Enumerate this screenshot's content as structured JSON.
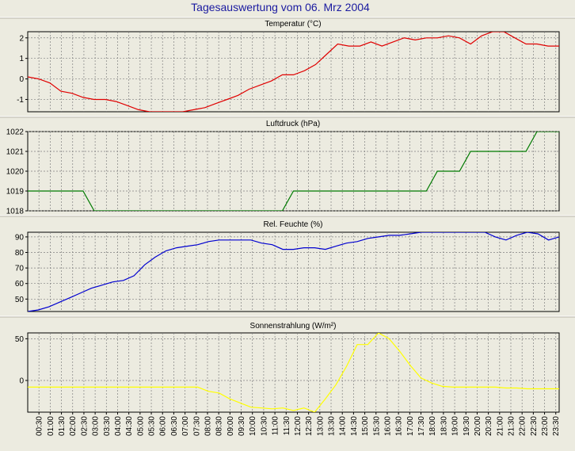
{
  "title": "Tagesauswertung vom 06. Mrz 2004",
  "colors": {
    "background": "#ecebe0",
    "plot_background": "#ecebe0",
    "grid": "#808080",
    "title": "#1a1aa0",
    "temperature": "#e00000",
    "pressure": "#007a00",
    "humidity": "#0000d0",
    "radiation": "#ffff00"
  },
  "x_tick_labels": [
    "00:30",
    "01:00",
    "01:30",
    "02:00",
    "02:30",
    "03:00",
    "03:30",
    "04:00",
    "04:30",
    "05:00",
    "05:30",
    "06:00",
    "06:30",
    "07:00",
    "07:30",
    "08:00",
    "08:30",
    "09:00",
    "09:30",
    "10:00",
    "10:30",
    "11:00",
    "11:30",
    "12:00",
    "12:30",
    "13:00",
    "13:30",
    "14:00",
    "14:30",
    "15:00",
    "15:30",
    "16:00",
    "16:30",
    "17:00",
    "17:30",
    "18:00",
    "18:30",
    "19:00",
    "19:30",
    "20:00",
    "20:30",
    "21:00",
    "21:30",
    "22:00",
    "22:30",
    "23:00",
    "23:30"
  ],
  "chart_data": [
    {
      "type": "line",
      "title": "Temperatur (°C)",
      "ylim": [
        -1.6,
        2.3
      ],
      "yticks": [
        -1,
        0,
        1,
        2
      ],
      "grid": true,
      "series": [
        {
          "color": "#e00000",
          "values": [
            0.1,
            0.0,
            -0.2,
            -0.6,
            -0.7,
            -0.9,
            -1.0,
            -1.0,
            -1.1,
            -1.3,
            -1.5,
            -1.6,
            -1.6,
            -1.6,
            -1.6,
            -1.5,
            -1.4,
            -1.2,
            -1.0,
            -0.8,
            -0.5,
            -0.3,
            -0.1,
            0.2,
            0.2,
            0.4,
            0.7,
            1.2,
            1.7,
            1.6,
            1.6,
            1.8,
            1.6,
            1.8,
            2.0,
            1.9,
            2.0,
            2.0,
            2.1,
            2.0,
            1.7,
            2.1,
            2.3,
            2.3,
            2.0,
            1.7,
            1.7,
            1.6,
            1.6
          ]
        }
      ]
    },
    {
      "type": "line",
      "title": "Luftdruck (hPa)",
      "ylim": [
        1018,
        1022
      ],
      "yticks": [
        1018,
        1019,
        1020,
        1021,
        1022
      ],
      "grid": true,
      "series": [
        {
          "color": "#007a00",
          "values": [
            1019,
            1019,
            1019,
            1019,
            1019,
            1019,
            1018,
            1018,
            1018,
            1018,
            1018,
            1018,
            1018,
            1018,
            1018,
            1018,
            1018,
            1018,
            1018,
            1018,
            1018,
            1018,
            1018,
            1018,
            1019,
            1019,
            1019,
            1019,
            1019,
            1019,
            1019,
            1019,
            1019,
            1019,
            1019,
            1019,
            1019,
            1020,
            1020,
            1020,
            1021,
            1021,
            1021,
            1021,
            1021,
            1021,
            1022,
            1022,
            1022
          ]
        }
      ]
    },
    {
      "type": "line",
      "title": "Rel. Feuchte (%)",
      "ylim": [
        42,
        93
      ],
      "yticks": [
        50,
        60,
        70,
        80,
        90
      ],
      "grid": true,
      "series": [
        {
          "color": "#0000d0",
          "values": [
            42,
            43,
            45,
            48,
            51,
            54,
            57,
            59,
            61,
            62,
            65,
            72,
            77,
            81,
            83,
            84,
            85,
            87,
            88,
            88,
            88,
            88,
            86,
            85,
            82,
            82,
            83,
            83,
            82,
            84,
            86,
            87,
            89,
            90,
            91,
            91,
            92,
            93,
            93,
            93,
            93,
            93,
            93,
            93,
            90,
            88,
            91,
            93,
            92,
            88,
            90
          ]
        }
      ]
    },
    {
      "type": "line",
      "title": "Sonnenstrahlung (W/m²)",
      "ylim": [
        -38,
        57
      ],
      "yticks": [
        0,
        50
      ],
      "grid": true,
      "series": [
        {
          "color": "#ffff00",
          "values": [
            -8,
            -8,
            -8,
            -8,
            -8,
            -8,
            -8,
            -8,
            -8,
            -8,
            -8,
            -8,
            -8,
            -8,
            -8,
            -8,
            -8,
            -13,
            -15,
            -22,
            -27,
            -32,
            -33,
            -34,
            -33,
            -36,
            -33,
            -38,
            -22,
            -5,
            17,
            43,
            43,
            57,
            50,
            35,
            18,
            3,
            -3,
            -7,
            -8,
            -8,
            -8,
            -8,
            -8,
            -9,
            -9,
            -10,
            -10,
            -10,
            -10
          ]
        }
      ]
    }
  ]
}
